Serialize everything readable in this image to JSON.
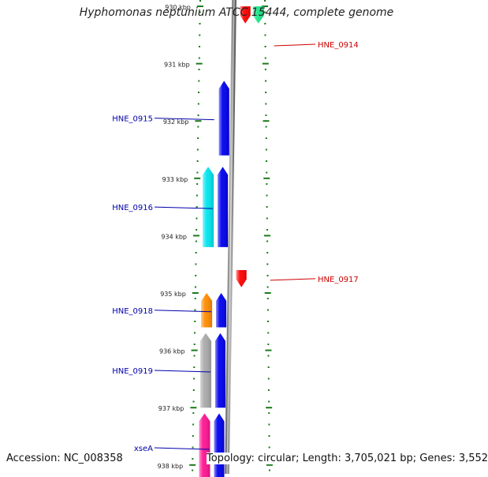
{
  "title": "Hyphomonas neptunium ATCC 15444, complete genome",
  "accession": "Accession: NC_008358",
  "topology": "Topology: circular; Length: 3,705,021 bp; Genes: 3,552",
  "scale_unit": "kbp",
  "ticks": [
    {
      "kbp": 930,
      "label": "930 kbp"
    },
    {
      "kbp": 931,
      "label": "931 kbp"
    },
    {
      "kbp": 932,
      "label": "932 kbp"
    },
    {
      "kbp": 933,
      "label": "933 kbp"
    },
    {
      "kbp": 934,
      "label": "934 kbp"
    },
    {
      "kbp": 935,
      "label": "935 kbp"
    },
    {
      "kbp": 936,
      "label": "936 kbp"
    },
    {
      "kbp": 937,
      "label": "937 kbp"
    },
    {
      "kbp": 938,
      "label": "938 kbp"
    }
  ],
  "genes": [
    {
      "name": "HNE_0914",
      "strand": "reverse",
      "kbp_start": 930.0,
      "kbp_end": 930.3,
      "color": "#ff0000",
      "label_color": "#cc0000",
      "labeled": true
    },
    {
      "name": "",
      "strand": "reverse",
      "kbp_start": 930.0,
      "kbp_end": 930.3,
      "color": "#1de88a",
      "labeled": false
    },
    {
      "name": "HNE_0915",
      "strand": "forward",
      "kbp_start": 931.3,
      "kbp_end": 932.6,
      "color": "#0000ee",
      "label_color": "#0000aa",
      "labeled": true
    },
    {
      "name": "HNE_0916",
      "strand": "forward",
      "kbp_start": 932.8,
      "kbp_end": 934.2,
      "color": "#0000ee",
      "label_color": "#0000aa",
      "labeled": true
    },
    {
      "name": "",
      "strand": "forward",
      "kbp_start": 932.8,
      "kbp_end": 934.2,
      "color": "#00e5ee",
      "labeled": false
    },
    {
      "name": "HNE_0917",
      "strand": "reverse",
      "kbp_start": 934.6,
      "kbp_end": 934.9,
      "color": "#ff0000",
      "label_color": "#cc0000",
      "labeled": true
    },
    {
      "name": "HNE_0918",
      "strand": "forward",
      "kbp_start": 935.0,
      "kbp_end": 935.6,
      "color": "#0000ee",
      "label_color": "#0000aa",
      "labeled": true
    },
    {
      "name": "",
      "strand": "forward",
      "kbp_start": 935.0,
      "kbp_end": 935.6,
      "color": "#ff8c00",
      "labeled": false
    },
    {
      "name": "HNE_0919",
      "strand": "forward",
      "kbp_start": 935.7,
      "kbp_end": 937.0,
      "color": "#0000ee",
      "label_color": "#0000aa",
      "labeled": true
    },
    {
      "name": "",
      "strand": "forward",
      "kbp_start": 935.7,
      "kbp_end": 937.0,
      "color": "#aaaaaa",
      "labeled": false
    },
    {
      "name": "xseA",
      "strand": "forward",
      "kbp_start": 937.1,
      "kbp_end": 938.3,
      "color": "#0000ee",
      "label_color": "#0000aa",
      "labeled": true
    },
    {
      "name": "",
      "strand": "forward",
      "kbp_start": 937.1,
      "kbp_end": 938.3,
      "color": "#ff1493",
      "labeled": false
    }
  ]
}
